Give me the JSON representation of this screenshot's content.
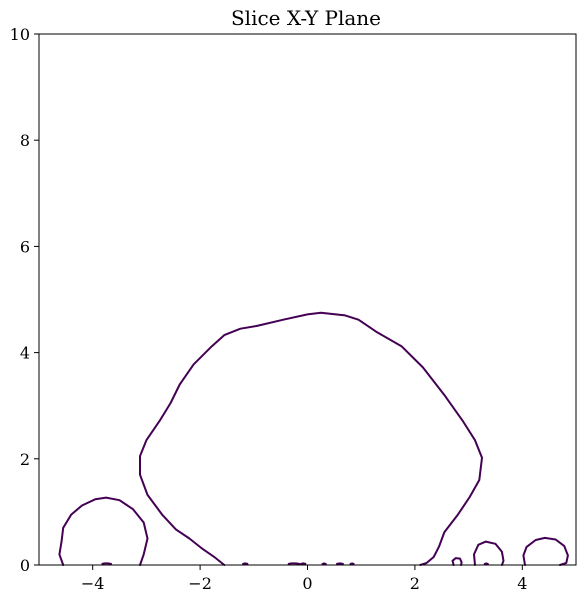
{
  "chart_data": {
    "type": "line",
    "title": "Slice X-Y Plane",
    "xlabel": "",
    "ylabel": "",
    "xlim": [
      -5,
      5
    ],
    "ylim": [
      0,
      10
    ],
    "x_ticks": [
      -4,
      -2,
      0,
      2,
      4
    ],
    "x_tick_labels": [
      "−4",
      "−2",
      "0",
      "2",
      "4"
    ],
    "y_ticks": [
      0,
      2,
      4,
      6,
      8,
      10
    ],
    "y_tick_labels": [
      "0",
      "2",
      "4",
      "6",
      "8",
      "10"
    ],
    "grid": false,
    "contour_color": "#440154",
    "series": [
      {
        "closed": false,
        "points": [
          [
            -1.55,
            0.0
          ],
          [
            -1.72,
            0.14
          ],
          [
            -1.95,
            0.3
          ],
          [
            -2.2,
            0.5
          ],
          [
            -2.45,
            0.67
          ],
          [
            -2.7,
            0.94
          ],
          [
            -2.98,
            1.32
          ],
          [
            -3.12,
            1.7
          ],
          [
            -3.12,
            2.05
          ],
          [
            -3.0,
            2.35
          ],
          [
            -2.75,
            2.72
          ],
          [
            -2.55,
            3.05
          ],
          [
            -2.38,
            3.4
          ],
          [
            -2.12,
            3.78
          ],
          [
            -1.78,
            4.12
          ],
          [
            -1.55,
            4.33
          ],
          [
            -1.25,
            4.45
          ],
          [
            -0.95,
            4.5
          ],
          [
            -0.45,
            4.62
          ],
          [
            0.0,
            4.72
          ],
          [
            0.25,
            4.75
          ],
          [
            0.7,
            4.7
          ],
          [
            0.95,
            4.62
          ],
          [
            1.3,
            4.38
          ],
          [
            1.75,
            4.12
          ],
          [
            2.15,
            3.72
          ],
          [
            2.55,
            3.2
          ],
          [
            2.9,
            2.7
          ],
          [
            3.12,
            2.35
          ],
          [
            3.25,
            2.02
          ],
          [
            3.2,
            1.6
          ],
          [
            3.02,
            1.28
          ],
          [
            2.8,
            0.95
          ],
          [
            2.55,
            0.62
          ],
          [
            2.45,
            0.35
          ],
          [
            2.35,
            0.15
          ],
          [
            2.22,
            0.04
          ],
          [
            2.1,
            0.0
          ]
        ]
      },
      {
        "closed": false,
        "points": [
          [
            -4.55,
            0.0
          ],
          [
            -4.62,
            0.2
          ],
          [
            -4.58,
            0.45
          ],
          [
            -4.55,
            0.7
          ],
          [
            -4.4,
            0.95
          ],
          [
            -4.2,
            1.12
          ],
          [
            -3.95,
            1.24
          ],
          [
            -3.75,
            1.27
          ],
          [
            -3.5,
            1.22
          ],
          [
            -3.25,
            1.05
          ],
          [
            -3.05,
            0.8
          ],
          [
            -2.98,
            0.5
          ],
          [
            -3.05,
            0.2
          ],
          [
            -3.12,
            0.0
          ]
        ]
      },
      {
        "closed": false,
        "points": [
          [
            3.12,
            0.0
          ],
          [
            3.1,
            0.2
          ],
          [
            3.18,
            0.38
          ],
          [
            3.32,
            0.44
          ],
          [
            3.5,
            0.4
          ],
          [
            3.62,
            0.25
          ],
          [
            3.65,
            0.08
          ],
          [
            3.62,
            0.0
          ]
        ]
      },
      {
        "closed": false,
        "points": [
          [
            4.05,
            0.0
          ],
          [
            4.02,
            0.18
          ],
          [
            4.08,
            0.34
          ],
          [
            4.25,
            0.47
          ],
          [
            4.42,
            0.51
          ],
          [
            4.62,
            0.48
          ],
          [
            4.78,
            0.36
          ],
          [
            4.85,
            0.18
          ],
          [
            4.82,
            0.04
          ],
          [
            4.7,
            0.0
          ]
        ]
      },
      {
        "closed": false,
        "points": [
          [
            2.72,
            0.0
          ],
          [
            2.7,
            0.08
          ],
          [
            2.76,
            0.13
          ],
          [
            2.84,
            0.12
          ],
          [
            2.87,
            0.05
          ],
          [
            2.86,
            0.0
          ]
        ]
      },
      {
        "closed": false,
        "points": [
          [
            -3.82,
            0.02
          ],
          [
            -3.78,
            0.03
          ],
          [
            -3.72,
            0.03
          ],
          [
            -3.66,
            0.02
          ]
        ]
      },
      {
        "closed": false,
        "points": [
          [
            -1.2,
            0.02
          ],
          [
            -1.16,
            0.03
          ],
          [
            -1.12,
            0.02
          ]
        ]
      },
      {
        "closed": false,
        "points": [
          [
            -0.35,
            0.02
          ],
          [
            -0.3,
            0.03
          ],
          [
            -0.22,
            0.03
          ],
          [
            -0.15,
            0.02
          ]
        ]
      },
      {
        "closed": false,
        "points": [
          [
            -0.12,
            0.02
          ],
          [
            -0.08,
            0.03
          ],
          [
            -0.04,
            0.02
          ]
        ]
      },
      {
        "closed": false,
        "points": [
          [
            0.28,
            0.02
          ],
          [
            0.31,
            0.03
          ],
          [
            0.34,
            0.02
          ]
        ]
      },
      {
        "closed": false,
        "points": [
          [
            0.55,
            0.02
          ],
          [
            0.6,
            0.03
          ],
          [
            0.66,
            0.02
          ]
        ]
      },
      {
        "closed": false,
        "points": [
          [
            0.8,
            0.02
          ],
          [
            0.83,
            0.03
          ],
          [
            0.86,
            0.02
          ]
        ]
      },
      {
        "closed": false,
        "points": [
          [
            3.3,
            0.02
          ],
          [
            3.33,
            0.03
          ],
          [
            3.36,
            0.02
          ]
        ]
      }
    ]
  }
}
